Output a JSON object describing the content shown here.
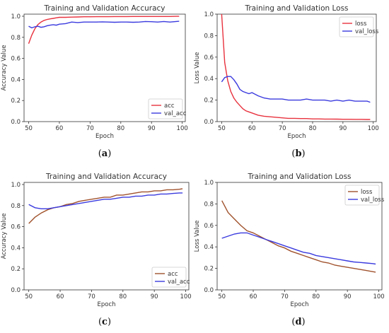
{
  "chart_data": [
    {
      "id": "a",
      "type": "line",
      "caption_letter": "a",
      "title": "Training and Validation Accuracy",
      "xlabel": "Epoch",
      "ylabel": "Accuracy Value",
      "xlim": [
        48.5,
        101
      ],
      "ylim": [
        0,
        1.02
      ],
      "xticks": [
        50,
        60,
        70,
        80,
        90,
        100
      ],
      "yticks": [
        0.0,
        0.2,
        0.4,
        0.6,
        0.8,
        1.0
      ],
      "legend_position": "lower-right",
      "series": [
        {
          "name": "acc",
          "color": "#e8323e",
          "x": [
            50,
            51,
            52,
            53,
            54,
            55,
            56,
            57,
            58,
            59,
            60,
            62,
            64,
            66,
            68,
            70,
            72,
            74,
            76,
            78,
            80,
            82,
            84,
            86,
            88,
            90,
            92,
            94,
            96,
            98,
            99
          ],
          "y": [
            0.74,
            0.82,
            0.88,
            0.92,
            0.945,
            0.96,
            0.97,
            0.975,
            0.98,
            0.985,
            0.99,
            0.99,
            0.992,
            0.993,
            0.995,
            0.995,
            0.996,
            0.996,
            0.996,
            0.997,
            0.997,
            0.997,
            0.998,
            0.998,
            0.998,
            0.998,
            0.998,
            0.998,
            0.998,
            0.999,
            0.999
          ]
        },
        {
          "name": "val_acc",
          "color": "#3a3adf",
          "x": [
            50,
            51,
            52,
            53,
            54,
            55,
            56,
            57,
            58,
            59,
            60,
            62,
            64,
            66,
            68,
            70,
            72,
            74,
            76,
            78,
            80,
            82,
            84,
            86,
            88,
            90,
            92,
            94,
            96,
            98,
            99
          ],
          "y": [
            0.905,
            0.89,
            0.9,
            0.905,
            0.895,
            0.9,
            0.91,
            0.915,
            0.92,
            0.915,
            0.925,
            0.93,
            0.945,
            0.94,
            0.945,
            0.945,
            0.945,
            0.947,
            0.945,
            0.943,
            0.945,
            0.945,
            0.943,
            0.945,
            0.95,
            0.948,
            0.945,
            0.95,
            0.945,
            0.95,
            0.952
          ]
        }
      ]
    },
    {
      "id": "b",
      "type": "line",
      "caption_letter": "b",
      "title": "Training and Validation Loss",
      "xlabel": "Epoch",
      "ylabel": "Loss Value",
      "xlim": [
        48.5,
        101
      ],
      "ylim": [
        0,
        1.0
      ],
      "xticks": [
        50,
        60,
        70,
        80,
        90,
        100
      ],
      "yticks": [
        0.0,
        0.2,
        0.4,
        0.6,
        0.8,
        1.0
      ],
      "legend_position": "top-right",
      "series": [
        {
          "name": "loss",
          "color": "#e8323e",
          "x": [
            50,
            51,
            52,
            53,
            54,
            55,
            56,
            57,
            58,
            59,
            60,
            62,
            64,
            66,
            68,
            70,
            72,
            74,
            76,
            78,
            80,
            82,
            84,
            86,
            88,
            90,
            92,
            94,
            96,
            98,
            99
          ],
          "y": [
            1.0,
            0.55,
            0.38,
            0.28,
            0.22,
            0.18,
            0.15,
            0.12,
            0.1,
            0.09,
            0.08,
            0.06,
            0.05,
            0.045,
            0.04,
            0.035,
            0.03,
            0.03,
            0.028,
            0.028,
            0.025,
            0.025,
            0.024,
            0.024,
            0.023,
            0.022,
            0.022,
            0.021,
            0.021,
            0.02,
            0.02
          ]
        },
        {
          "name": "val_loss",
          "color": "#3a3adf",
          "x": [
            50,
            51,
            52,
            53,
            54,
            55,
            56,
            57,
            58,
            59,
            60,
            62,
            64,
            66,
            68,
            70,
            72,
            74,
            76,
            78,
            80,
            82,
            84,
            86,
            88,
            90,
            92,
            94,
            96,
            98,
            99
          ],
          "y": [
            0.37,
            0.41,
            0.42,
            0.42,
            0.39,
            0.35,
            0.3,
            0.28,
            0.27,
            0.26,
            0.27,
            0.24,
            0.22,
            0.21,
            0.21,
            0.21,
            0.2,
            0.2,
            0.2,
            0.21,
            0.2,
            0.2,
            0.2,
            0.19,
            0.2,
            0.19,
            0.2,
            0.19,
            0.19,
            0.19,
            0.18
          ]
        }
      ]
    },
    {
      "id": "c",
      "type": "line",
      "caption_letter": "c",
      "title": "Training and Validation Accuracy",
      "xlabel": "Epoch",
      "ylabel": "Accuracy Value",
      "xlim": [
        48.5,
        101
      ],
      "ylim": [
        0,
        1.02
      ],
      "xticks": [
        50,
        60,
        70,
        80,
        90,
        100
      ],
      "yticks": [
        0.0,
        0.2,
        0.4,
        0.6,
        0.8,
        1.0
      ],
      "legend_position": "lower-right",
      "series": [
        {
          "name": "acc",
          "color": "#a0522d",
          "x": [
            50,
            52,
            54,
            56,
            58,
            60,
            62,
            64,
            66,
            68,
            70,
            72,
            74,
            76,
            78,
            80,
            82,
            84,
            86,
            88,
            90,
            92,
            94,
            96,
            98,
            99
          ],
          "y": [
            0.63,
            0.69,
            0.73,
            0.76,
            0.78,
            0.79,
            0.81,
            0.82,
            0.84,
            0.85,
            0.86,
            0.87,
            0.88,
            0.88,
            0.9,
            0.9,
            0.91,
            0.92,
            0.93,
            0.93,
            0.94,
            0.94,
            0.95,
            0.95,
            0.955,
            0.96
          ]
        },
        {
          "name": "val_acc",
          "color": "#3a3adf",
          "x": [
            50,
            52,
            54,
            56,
            58,
            60,
            62,
            64,
            66,
            68,
            70,
            72,
            74,
            76,
            78,
            80,
            82,
            84,
            86,
            88,
            90,
            92,
            94,
            96,
            98,
            99
          ],
          "y": [
            0.81,
            0.78,
            0.77,
            0.77,
            0.78,
            0.79,
            0.8,
            0.81,
            0.82,
            0.83,
            0.84,
            0.85,
            0.86,
            0.86,
            0.87,
            0.88,
            0.88,
            0.89,
            0.89,
            0.9,
            0.9,
            0.91,
            0.91,
            0.915,
            0.92,
            0.92
          ]
        }
      ]
    },
    {
      "id": "d",
      "type": "line",
      "caption_letter": "d",
      "title": "Training and Validation Loss",
      "xlabel": "Epoch",
      "ylabel": "Loss Value",
      "xlim": [
        48.5,
        101
      ],
      "ylim": [
        0,
        1.0
      ],
      "xticks": [
        50,
        60,
        70,
        80,
        90,
        100
      ],
      "yticks": [
        0.0,
        0.2,
        0.4,
        0.6,
        0.8,
        1.0
      ],
      "legend_position": "top-right",
      "series": [
        {
          "name": "loss",
          "color": "#a0522d",
          "x": [
            50,
            52,
            54,
            56,
            58,
            60,
            62,
            64,
            66,
            68,
            70,
            72,
            74,
            76,
            78,
            80,
            82,
            84,
            86,
            88,
            90,
            92,
            94,
            96,
            98,
            99
          ],
          "y": [
            0.83,
            0.72,
            0.66,
            0.6,
            0.55,
            0.53,
            0.5,
            0.47,
            0.44,
            0.41,
            0.39,
            0.36,
            0.34,
            0.32,
            0.3,
            0.28,
            0.26,
            0.25,
            0.23,
            0.22,
            0.21,
            0.2,
            0.19,
            0.18,
            0.17,
            0.165
          ]
        },
        {
          "name": "val_loss",
          "color": "#3a3adf",
          "x": [
            50,
            52,
            54,
            56,
            58,
            60,
            62,
            64,
            66,
            68,
            70,
            72,
            74,
            76,
            78,
            80,
            82,
            84,
            86,
            88,
            90,
            92,
            94,
            96,
            98,
            99
          ],
          "y": [
            0.48,
            0.5,
            0.52,
            0.53,
            0.53,
            0.51,
            0.49,
            0.47,
            0.45,
            0.43,
            0.41,
            0.39,
            0.37,
            0.35,
            0.34,
            0.32,
            0.31,
            0.3,
            0.29,
            0.28,
            0.27,
            0.26,
            0.255,
            0.25,
            0.245,
            0.24
          ]
        }
      ]
    }
  ]
}
